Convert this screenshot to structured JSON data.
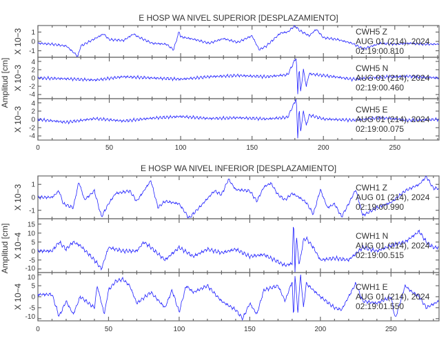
{
  "chart_data": [
    {
      "type": "line",
      "title": "E HOSP WA NIVEL SUPERIOR [DESPLAZAMIENTO]",
      "ylabel": "Amplitud [cm]",
      "xlim": [
        0,
        281
      ],
      "xticks": [
        0,
        50,
        100,
        150,
        200,
        250
      ],
      "line_color": "#2020ff",
      "traces": [
        {
          "station": "CWH5",
          "component": "Z",
          "date": "AUG 01 (214), 2024",
          "time": "02:19:00.810",
          "scale_label": "X 10−3",
          "ylim": [
            -1.7,
            1.7
          ],
          "yticks": [
            -1,
            0,
            1
          ],
          "x": [
            0,
            10,
            20,
            28,
            30,
            40,
            46,
            50,
            60,
            67,
            70,
            80,
            90,
            95,
            99,
            100,
            110,
            120,
            130,
            140,
            150,
            155,
            160,
            170,
            175,
            180,
            183,
            190,
            195,
            200,
            210,
            220,
            228,
            240,
            250,
            260,
            270,
            281
          ],
          "y": [
            -0.2,
            -0.3,
            -0.5,
            -1.6,
            -0.5,
            0.3,
            0.8,
            0.2,
            0.1,
            0.8,
            0.5,
            -0.2,
            -0.3,
            -0.9,
            1.1,
            0.5,
            0.2,
            -0.2,
            0.3,
            -0.1,
            0.6,
            -0.9,
            -0.5,
            0.9,
            1.0,
            1.7,
            1.2,
            0.6,
            1.3,
            0.4,
            0.2,
            -0.2,
            -0.8,
            -0.2,
            -0.3,
            -0.2,
            -0.3,
            -0.3
          ]
        },
        {
          "station": "CWH5",
          "component": "N",
          "date": "AUG 01 (214), 2024",
          "time": "02:19:00.460",
          "scale_label": "X 10−3",
          "ylim": [
            -5,
            5
          ],
          "yticks": [
            -4,
            -2,
            0,
            2,
            4
          ],
          "x": [
            0,
            20,
            40,
            60,
            80,
            100,
            120,
            140,
            160,
            175,
            181,
            182,
            183,
            184,
            186,
            188,
            190,
            200,
            210,
            220,
            240,
            260,
            281
          ],
          "y": [
            0,
            -0.2,
            -0.5,
            0.3,
            0,
            -0.3,
            0.3,
            0.6,
            0.3,
            0.8,
            5,
            -4,
            3,
            -3.5,
            2,
            -2,
            1,
            0.6,
            0.2,
            -0.3,
            0.2,
            0.4,
            0
          ]
        },
        {
          "station": "CWH5",
          "component": "E",
          "date": "AUG 01 (214), 2024",
          "time": "02:19:00.075",
          "scale_label": "X 10−3",
          "ylim": [
            -5,
            5
          ],
          "yticks": [
            -4,
            -2,
            0,
            2,
            4
          ],
          "x": [
            0,
            20,
            40,
            60,
            80,
            100,
            120,
            140,
            160,
            175,
            181,
            182,
            183,
            184,
            186,
            188,
            190,
            195,
            200,
            220,
            240,
            260,
            281
          ],
          "y": [
            0,
            -0.7,
            0.2,
            -0.4,
            0.3,
            0.7,
            0.2,
            0.4,
            0.1,
            0.5,
            5,
            -4.5,
            3,
            -3,
            2,
            -1.5,
            1,
            0.6,
            0.1,
            -0.2,
            0.4,
            -0.2,
            0
          ]
        }
      ]
    },
    {
      "type": "line",
      "title": "E HOSP WA NIVEL INFERIOR [DESPLAZAMIENTO]",
      "ylabel": "Amplitud [cm]",
      "xlim": [
        0,
        284
      ],
      "xticks": [
        0,
        50,
        100,
        150,
        200,
        250
      ],
      "line_color": "#2020ff",
      "traces": [
        {
          "station": "CWH1",
          "component": "Z",
          "date": "AUG 01 (214), 2024",
          "time": "02:19:00.990",
          "scale_label": "X 10−3",
          "ylim": [
            -1.65,
            1.65
          ],
          "yticks": [
            -1,
            0,
            1
          ],
          "x": [
            0,
            10,
            15,
            18,
            25,
            29,
            33,
            40,
            45,
            50,
            55,
            65,
            70,
            80,
            85,
            90,
            100,
            107,
            115,
            125,
            130,
            135,
            140,
            150,
            155,
            160,
            165,
            170,
            175,
            180,
            185,
            190,
            195,
            200,
            205,
            210,
            215,
            220,
            225,
            230,
            240,
            250,
            260,
            270,
            275,
            280,
            284
          ],
          "y": [
            0,
            0,
            0.5,
            -0.5,
            -0.8,
            1.2,
            -0.2,
            0.5,
            -1.5,
            -0.5,
            0.3,
            0.5,
            -0.3,
            1.3,
            -0.8,
            -0.3,
            -0.5,
            -1.6,
            -0.7,
            0.5,
            0.2,
            1.4,
            0.6,
            0.5,
            -0.3,
            0.8,
            1.1,
            0.2,
            -0.2,
            0.3,
            0,
            -0.4,
            -1.3,
            0.6,
            -0.8,
            -0.5,
            -1.5,
            -0.5,
            0.6,
            -1.4,
            -0.8,
            -0.4,
            0.5,
            1.0,
            1.6,
            0.7,
            0.7
          ]
        },
        {
          "station": "CWH1",
          "component": "N",
          "date": "AUG 01 (214), 2024",
          "time": "02:19:00.515",
          "scale_label": "X 10−4",
          "ylim": [
            -12,
            18
          ],
          "yticks": [
            -10,
            -5,
            0,
            5,
            10,
            15
          ],
          "x": [
            0,
            10,
            15,
            20,
            25,
            30,
            40,
            45,
            50,
            60,
            70,
            75,
            80,
            90,
            100,
            110,
            120,
            130,
            140,
            150,
            160,
            170,
            175,
            180,
            181,
            182,
            183,
            185,
            188,
            190,
            195,
            200,
            210,
            220,
            230,
            240,
            250,
            260,
            270,
            275,
            280,
            284
          ],
          "y": [
            0,
            0,
            5,
            1,
            5,
            3,
            -5,
            -10,
            2,
            0,
            0,
            5,
            2,
            -5,
            2,
            -3,
            1,
            -1,
            1,
            -3,
            -2,
            -6,
            -8,
            -7,
            18,
            -12,
            8,
            -8,
            6,
            7,
            2,
            -5,
            -4,
            -5,
            2,
            0,
            3,
            5,
            11,
            5,
            2,
            2
          ]
        },
        {
          "station": "CWH1",
          "component": "E",
          "date": "AUG 01 (214), 2024",
          "time": "02:19:01.550",
          "scale_label": "X 10−4",
          "ylim": [
            -11,
            11
          ],
          "yticks": [
            -10,
            -5,
            0,
            5,
            10
          ],
          "x": [
            0,
            10,
            15,
            20,
            25,
            30,
            40,
            42,
            47,
            50,
            55,
            60,
            65,
            70,
            80,
            90,
            95,
            100,
            105,
            110,
            120,
            130,
            140,
            145,
            150,
            155,
            160,
            170,
            175,
            180,
            181,
            182,
            184,
            186,
            188,
            190,
            200,
            210,
            215,
            225,
            230,
            240,
            250,
            253,
            260,
            265,
            270,
            275,
            284
          ],
          "y": [
            1,
            1,
            -9,
            -2,
            -8,
            0,
            -5,
            5,
            -8,
            3,
            7,
            8,
            5,
            -3,
            2,
            -5,
            3,
            -7,
            5,
            2,
            5,
            -2,
            -6,
            -10,
            -3,
            -8,
            3,
            5,
            -2,
            7,
            -11,
            10,
            -7,
            10,
            -5,
            6,
            0,
            -5,
            -6,
            6,
            -2,
            -3,
            0,
            -10,
            5,
            2,
            0,
            -5,
            -2
          ]
        }
      ]
    }
  ]
}
